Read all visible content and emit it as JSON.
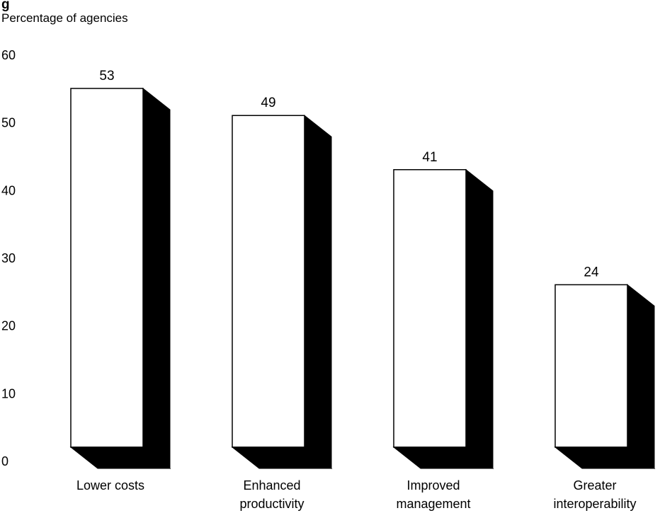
{
  "chart_data": {
    "type": "bar",
    "title": "g",
    "ylabel": "Percentage of agencies",
    "xlabel": "",
    "categories": [
      [
        "Lower costs"
      ],
      [
        "Enhanced",
        "productivity"
      ],
      [
        "Improved",
        "management"
      ],
      [
        "Greater",
        "interoperability"
      ]
    ],
    "values": [
      53,
      49,
      41,
      24
    ],
    "ylim": [
      0,
      60
    ],
    "yticks": [
      0,
      10,
      20,
      30,
      40,
      50,
      60
    ],
    "style": "3d",
    "grid": false,
    "colors": {
      "bar_face": "#ffffff",
      "bar_side": "#000000",
      "outline": "#000000"
    }
  }
}
